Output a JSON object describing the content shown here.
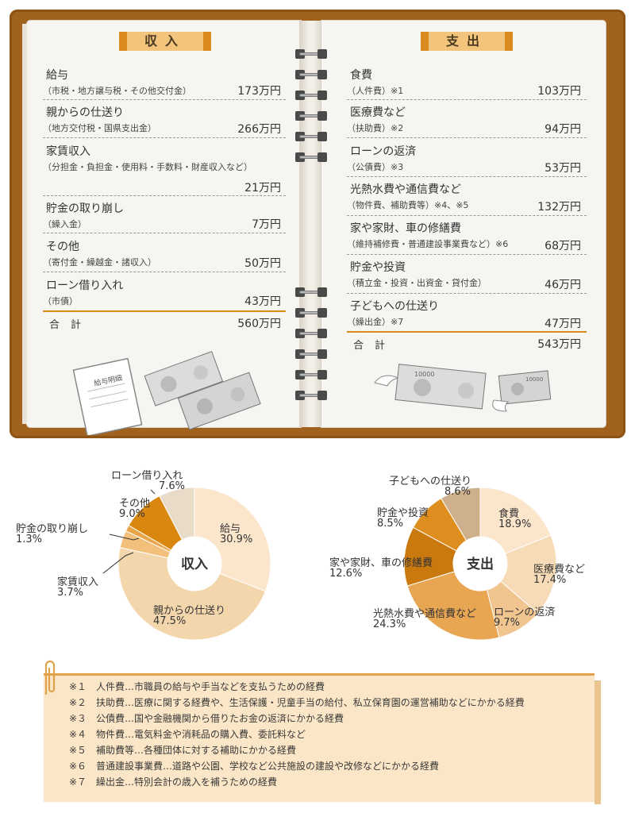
{
  "income": {
    "header": "収入",
    "rows": [
      {
        "title": "給与",
        "sub": "（市税・地方譲与税・その他交付金）",
        "amount": "173万円"
      },
      {
        "title": "親からの仕送り",
        "sub": "（地方交付税・国県支出金）",
        "amount": "266万円"
      },
      {
        "title": "家賃収入",
        "sub": "（分担金・負担金・使用料・手数料・財産収入など）",
        "amount": "21万円"
      },
      {
        "title": "貯金の取り崩し",
        "sub": "（繰入金）",
        "amount": "7万円"
      },
      {
        "title": "その他",
        "sub": "（寄付金・繰越金・諸収入）",
        "amount": "50万円"
      },
      {
        "title": "ローン借り入れ",
        "sub": "（市債）",
        "amount": "43万円"
      }
    ],
    "total_label": "合計",
    "total": "560万円"
  },
  "expense": {
    "header": "支出",
    "rows": [
      {
        "title": "食費",
        "sub": "（人件費）※1",
        "amount": "103万円"
      },
      {
        "title": "医療費など",
        "sub": "（扶助費）※2",
        "amount": "94万円"
      },
      {
        "title": "ローンの返済",
        "sub": "（公債費）※3",
        "amount": "53万円"
      },
      {
        "title": "光熱水費や通信費など",
        "sub": "（物件費、補助費等）※4、※5",
        "amount": "132万円"
      },
      {
        "title": "家や家財、車の修繕費",
        "sub": "（維持補修費・普通建設事業費など）※6",
        "amount": "68万円"
      },
      {
        "title": "貯金や投資",
        "sub": "（積立金・投資・出資金・貸付金）",
        "amount": "46万円"
      },
      {
        "title": "子どもへの仕送り",
        "sub": "（繰出金）※7",
        "amount": "47万円"
      }
    ],
    "total_label": "合計",
    "total": "543万円"
  },
  "illustration": {
    "payslip_text": "給与明細",
    "note_left_text": "10000",
    "note_right_text": "10000"
  },
  "notes": [
    "※１　人件費…市職員の給与や手当などを支払うための経費",
    "※２　扶助費…医療に関する経費や、生活保護・児童手当の給付、私立保育園の運営補助などにかかる経費",
    "※３　公債費…国や金融機関から借りたお金の返済にかかる経費",
    "※４　物件費…電気料金や消耗品の購入費、委託料など",
    "※５　補助費等…各種団体に対する補助にかかる経費",
    "※６　普通建設事業費…道路や公園、学校など公共施設の建設や改修などにかかる経費",
    "※７　繰出金…特別会計の歳入を補うための経費"
  ],
  "colors": {
    "cover": "#a0621c",
    "accent": "#d98a1d",
    "header_fill": "#f3c57c",
    "notes_fill": "#fbe6c7"
  },
  "chart_data": [
    {
      "type": "pie",
      "center_label": "収入",
      "slices": [
        {
          "label": "給与",
          "value": 30.9,
          "pct_text": "30.9%",
          "color": "#fbe6cc"
        },
        {
          "label": "親からの仕送り",
          "value": 47.5,
          "pct_text": "47.5%",
          "color": "#f4d6ad"
        },
        {
          "label": "家賃収入",
          "value": 3.7,
          "pct_text": "3.7%",
          "color": "#f3c07c"
        },
        {
          "label": "貯金の取り崩し",
          "value": 1.3,
          "pct_text": "1.3%",
          "color": "#e9a54a"
        },
        {
          "label": "その他",
          "value": 9.0,
          "pct_text": "9.0%",
          "color": "#d9870f"
        },
        {
          "label": "ローン借り入れ",
          "value": 7.6,
          "pct_text": "7.6%",
          "color": "#e8dcc9"
        }
      ]
    },
    {
      "type": "pie",
      "center_label": "支出",
      "slices": [
        {
          "label": "食費",
          "value": 18.9,
          "pct_text": "18.9%",
          "color": "#fbe6cc"
        },
        {
          "label": "医療費など",
          "value": 17.4,
          "pct_text": "17.4%",
          "color": "#f6dbb6"
        },
        {
          "label": "ローンの返済",
          "value": 9.7,
          "pct_text": "9.7%",
          "color": "#f0c590"
        },
        {
          "label": "光熱水費や通信費など",
          "value": 24.3,
          "pct_text": "24.3%",
          "color": "#e8a552"
        },
        {
          "label": "家や家財、車の修繕費",
          "value": 12.6,
          "pct_text": "12.6%",
          "color": "#c9790e"
        },
        {
          "label": "貯金や投資",
          "value": 8.5,
          "pct_text": "8.5%",
          "color": "#de8e1e"
        },
        {
          "label": "子どもへの仕送り",
          "value": 8.6,
          "pct_text": "8.6%",
          "color": "#cfb08c"
        }
      ]
    }
  ]
}
